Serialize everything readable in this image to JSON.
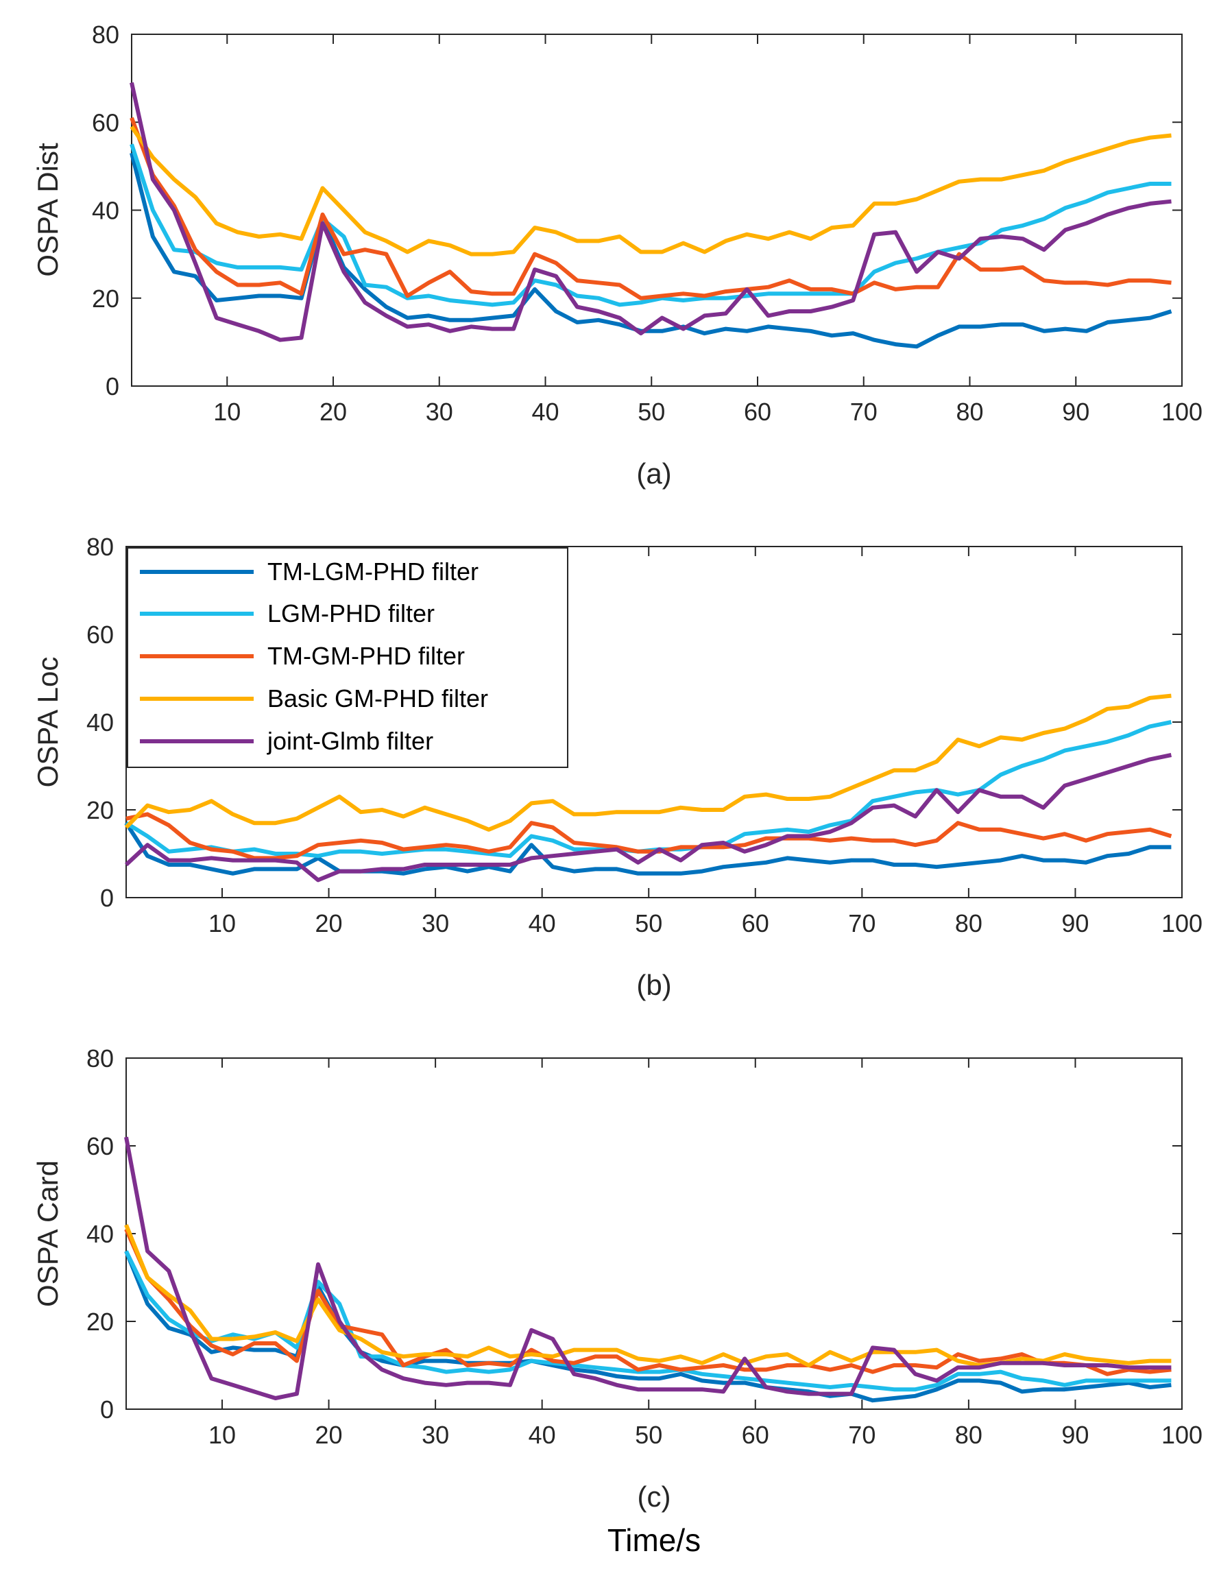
{
  "chart_data": [
    {
      "type": "line",
      "id": "a",
      "ylabel": "OSPA Dist",
      "subtitle": "(a)",
      "xlim": [
        1,
        100
      ],
      "ylim": [
        0,
        80
      ],
      "xticks": [
        10,
        20,
        30,
        40,
        50,
        60,
        70,
        80,
        90,
        100
      ],
      "yticks": [
        0,
        20,
        40,
        60,
        80
      ],
      "grid": false,
      "x": [
        1,
        3,
        5,
        7,
        9,
        11,
        13,
        15,
        17,
        19,
        21,
        23,
        25,
        27,
        29,
        31,
        33,
        35,
        37,
        39,
        41,
        43,
        45,
        47,
        49,
        51,
        53,
        55,
        57,
        59,
        61,
        63,
        65,
        67,
        69,
        71,
        73,
        75,
        77,
        79,
        81,
        83,
        85,
        87,
        89,
        91,
        93,
        95,
        97,
        99
      ],
      "series": [
        {
          "name": "TM-LGM-PHD filter",
          "color": "#0072BD",
          "values": [
            53,
            34,
            26,
            25,
            19.5,
            20,
            20.5,
            20.5,
            20,
            38,
            27,
            22,
            18,
            15.5,
            16,
            15,
            15,
            15.5,
            16,
            22,
            17,
            14.5,
            15,
            14,
            12.5,
            12.5,
            13.5,
            12,
            13,
            12.5,
            13.5,
            13,
            12.5,
            11.5,
            12,
            10.5,
            9.5,
            9,
            11.5,
            13.5,
            13.5,
            14,
            14,
            12.5,
            13,
            12.5,
            14.5,
            15,
            15.5,
            17
          ]
        },
        {
          "name": "LGM-PHD filter",
          "color": "#1EBDEB",
          "values": [
            55,
            40,
            31,
            30.5,
            28,
            27,
            27,
            27,
            26.5,
            38,
            34,
            23,
            22.5,
            20,
            20.5,
            19.5,
            19,
            18.5,
            19,
            24,
            23,
            20.5,
            20,
            18.5,
            19,
            20,
            19.5,
            20,
            20,
            20.5,
            21,
            21,
            21,
            21,
            21,
            26,
            28,
            29,
            30.5,
            31.5,
            32.5,
            35.5,
            36.5,
            38,
            40.5,
            42,
            44,
            45,
            46,
            46
          ]
        },
        {
          "name": "TM-GM-PHD filter",
          "color": "#F0561B",
          "values": [
            61,
            48,
            41,
            31,
            26,
            23,
            23,
            23.5,
            21,
            39,
            30,
            31,
            30,
            20.5,
            23.5,
            26,
            21.5,
            21,
            21,
            30,
            28,
            24,
            23.5,
            23,
            20,
            20.5,
            21,
            20.5,
            21.5,
            22,
            22.5,
            24,
            22,
            22,
            21,
            23.5,
            22,
            22.5,
            22.5,
            30,
            26.5,
            26.5,
            27,
            24,
            23.5,
            23.5,
            23,
            24,
            24,
            23.5
          ]
        },
        {
          "name": "Basic GM-PHD filter",
          "color": "#FFB000",
          "values": [
            59,
            52,
            47,
            43,
            37,
            35,
            34,
            34.5,
            33.5,
            45,
            40,
            35,
            33,
            30.5,
            33,
            32,
            30,
            30,
            30.5,
            36,
            35,
            33,
            33,
            34,
            30.5,
            30.5,
            32.5,
            30.5,
            33,
            34.5,
            33.5,
            35,
            33.5,
            36,
            36.5,
            41.5,
            41.5,
            42.5,
            44.5,
            46.5,
            47,
            47,
            48,
            49,
            51,
            52.5,
            54,
            55.5,
            56.5,
            57
          ]
        },
        {
          "name": "joint-Glmb filter",
          "color": "#7E2F8E",
          "values": [
            69,
            47,
            40,
            28,
            15.5,
            14,
            12.5,
            10.5,
            11,
            37,
            26,
            19,
            16,
            13.5,
            14,
            12.5,
            13.5,
            13,
            13,
            26.5,
            25,
            18,
            17,
            15.5,
            12,
            15.5,
            13,
            16,
            16.5,
            22,
            16,
            17,
            17,
            18,
            19.5,
            34.5,
            35,
            26,
            30.5,
            29,
            33.5,
            34,
            33.5,
            31,
            35.5,
            37,
            39,
            40.5,
            41.5,
            42
          ]
        }
      ]
    },
    {
      "type": "line",
      "id": "b",
      "ylabel": "OSPA Loc",
      "subtitle": "(b)",
      "xlim": [
        1,
        100
      ],
      "ylim": [
        0,
        80
      ],
      "xticks": [
        10,
        20,
        30,
        40,
        50,
        60,
        70,
        80,
        90,
        100
      ],
      "yticks": [
        0,
        20,
        40,
        60,
        80
      ],
      "grid": false,
      "legend": {
        "position": "top-left",
        "entries": [
          "TM-LGM-PHD filter",
          "LGM-PHD filter",
          "TM-GM-PHD filter",
          "Basic GM-PHD filter",
          "joint-Glmb filter"
        ]
      },
      "x": [
        1,
        3,
        5,
        7,
        9,
        11,
        13,
        15,
        17,
        19,
        21,
        23,
        25,
        27,
        29,
        31,
        33,
        35,
        37,
        39,
        41,
        43,
        45,
        47,
        49,
        51,
        53,
        55,
        57,
        59,
        61,
        63,
        65,
        67,
        69,
        71,
        73,
        75,
        77,
        79,
        81,
        83,
        85,
        87,
        89,
        91,
        93,
        95,
        97,
        99
      ],
      "series": [
        {
          "name": "TM-LGM-PHD filter",
          "color": "#0072BD",
          "values": [
            17,
            9.5,
            7.5,
            7.5,
            6.5,
            5.5,
            6.5,
            6.5,
            6.5,
            9,
            6,
            6,
            6,
            5.5,
            6.5,
            7,
            6,
            7,
            6,
            12,
            7,
            6,
            6.5,
            6.5,
            5.5,
            5.5,
            5.5,
            6,
            7,
            7.5,
            8,
            9,
            8.5,
            8,
            8.5,
            8.5,
            7.5,
            7.5,
            7,
            7.5,
            8,
            8.5,
            9.5,
            8.5,
            8.5,
            8,
            9.5,
            10,
            11.5,
            11.5
          ]
        },
        {
          "name": "LGM-PHD filter",
          "color": "#1EBDEB",
          "values": [
            17,
            14,
            10.5,
            11,
            11.5,
            10.5,
            11,
            10,
            10,
            9.5,
            10.5,
            10.5,
            10,
            10.5,
            11,
            11,
            10.5,
            10,
            9.5,
            14,
            13,
            11,
            11,
            11,
            10.5,
            11,
            11,
            11.5,
            12,
            14.5,
            15,
            15.5,
            15,
            16.5,
            17.5,
            22,
            23,
            24,
            24.5,
            23.5,
            24.5,
            28,
            30,
            31.5,
            33.5,
            34.5,
            35.5,
            37,
            39,
            40
          ]
        },
        {
          "name": "TM-GM-PHD filter",
          "color": "#F0561B",
          "values": [
            18,
            19,
            16.5,
            12.5,
            11,
            10.5,
            9,
            9,
            9.5,
            12,
            12.5,
            13,
            12.5,
            11,
            11.5,
            12,
            11.5,
            10.5,
            11.5,
            17,
            16,
            12.5,
            12,
            11.5,
            10.5,
            10.5,
            11.5,
            11.5,
            11.5,
            12,
            13.5,
            13.5,
            13.5,
            13,
            13.5,
            13,
            13,
            12,
            13,
            17,
            15.5,
            15.5,
            14.5,
            13.5,
            14.5,
            13,
            14.5,
            15,
            15.5,
            14
          ]
        },
        {
          "name": "Basic GM-PHD filter",
          "color": "#FFB000",
          "values": [
            16,
            21,
            19.5,
            20,
            22,
            19,
            17,
            17,
            18,
            20.5,
            23,
            19.5,
            20,
            18.5,
            20.5,
            19,
            17.5,
            15.5,
            17.5,
            21.5,
            22,
            19,
            19,
            19.5,
            19.5,
            19.5,
            20.5,
            20,
            20,
            23,
            23.5,
            22.5,
            22.5,
            23,
            25,
            27,
            29,
            29,
            31,
            36,
            34.5,
            36.5,
            36,
            37.5,
            38.5,
            40.5,
            43,
            43.5,
            45.5,
            46
          ]
        },
        {
          "name": "joint-Glmb filter",
          "color": "#7E2F8E",
          "values": [
            7.5,
            12,
            8.5,
            8.5,
            9,
            8.5,
            8.5,
            8.5,
            8,
            4,
            6,
            6,
            6.5,
            6.5,
            7.5,
            7.5,
            7.5,
            7.5,
            7.5,
            9,
            9.5,
            10,
            10.5,
            11,
            8,
            11,
            8.5,
            12,
            12.5,
            10.5,
            12,
            14,
            14,
            15,
            17,
            20.5,
            21,
            18.5,
            24.5,
            19.5,
            24.5,
            23,
            23,
            20.5,
            25.5,
            27,
            28.5,
            30,
            31.5,
            32.5
          ]
        }
      ]
    },
    {
      "type": "line",
      "id": "c",
      "ylabel": "OSPA Card",
      "subtitle": "(c)",
      "xlabel": "Time/s",
      "xlim": [
        1,
        100
      ],
      "ylim": [
        0,
        80
      ],
      "xticks": [
        10,
        20,
        30,
        40,
        50,
        60,
        70,
        80,
        90,
        100
      ],
      "yticks": [
        0,
        20,
        40,
        60,
        80
      ],
      "grid": false,
      "x": [
        1,
        3,
        5,
        7,
        9,
        11,
        13,
        15,
        17,
        19,
        21,
        23,
        25,
        27,
        29,
        31,
        33,
        35,
        37,
        39,
        41,
        43,
        45,
        47,
        49,
        51,
        53,
        55,
        57,
        59,
        61,
        63,
        65,
        67,
        69,
        71,
        73,
        75,
        77,
        79,
        81,
        83,
        85,
        87,
        89,
        91,
        93,
        95,
        97,
        99
      ],
      "series": [
        {
          "name": "TM-LGM-PHD filter",
          "color": "#0072BD",
          "values": [
            36,
            24,
            18.5,
            17,
            13,
            14,
            13.5,
            13.5,
            12,
            28,
            19,
            13,
            11,
            10,
            11,
            11,
            10.5,
            10.5,
            10.5,
            11,
            10,
            9,
            8.5,
            7.5,
            7,
            7,
            8,
            6.5,
            6,
            6,
            5,
            4.5,
            4,
            3,
            3.5,
            2,
            2.5,
            3,
            4.5,
            6.5,
            6.5,
            6,
            4,
            4.5,
            4.5,
            5,
            5.5,
            6,
            5,
            5.5
          ]
        },
        {
          "name": "LGM-PHD filter",
          "color": "#1EBDEB",
          "values": [
            36,
            26,
            20.5,
            17.5,
            15.5,
            17,
            16,
            17.5,
            14,
            29,
            24,
            12,
            12,
            10,
            9.5,
            8.5,
            9,
            8.5,
            9,
            11,
            10.5,
            10,
            9.5,
            9,
            8.5,
            8.5,
            9,
            8,
            7.5,
            7,
            6.5,
            6,
            5.5,
            5,
            5.5,
            5,
            4.5,
            4.5,
            5.5,
            8,
            8,
            8.5,
            7,
            6.5,
            5.5,
            6.5,
            6.5,
            6.5,
            6.5,
            6.5
          ]
        },
        {
          "name": "TM-GM-PHD filter",
          "color": "#F0561B",
          "values": [
            41,
            30,
            25,
            19,
            14.5,
            12.5,
            15,
            15,
            11,
            27,
            19,
            18,
            17,
            10,
            12,
            13.5,
            10,
            10.5,
            10,
            13.5,
            11,
            10.5,
            12,
            12,
            9,
            10,
            9,
            9.5,
            10,
            9,
            9,
            10,
            10,
            9,
            10,
            8.5,
            10,
            10,
            9.5,
            12.5,
            11,
            11.5,
            12.5,
            10.5,
            10.5,
            10,
            8,
            9,
            8.5,
            9
          ]
        },
        {
          "name": "Basic GM-PHD filter",
          "color": "#FFB000",
          "values": [
            42,
            30,
            26,
            22.5,
            16,
            16,
            16.5,
            17.5,
            15.5,
            25,
            18,
            16,
            13,
            12,
            12.5,
            12.5,
            12,
            14,
            12,
            12.5,
            12,
            13.5,
            13.5,
            13.5,
            11.5,
            11,
            12,
            10.5,
            12.5,
            10.5,
            12,
            12.5,
            10,
            13,
            11,
            13,
            13,
            13,
            13.5,
            11,
            10,
            10.5,
            11.5,
            11,
            12.5,
            11.5,
            11,
            10.5,
            11,
            11
          ]
        },
        {
          "name": "joint-Glmb filter",
          "color": "#7E2F8E",
          "values": [
            62,
            36,
            31.5,
            18,
            7,
            5.5,
            4,
            2.5,
            3.5,
            33,
            20,
            13,
            9,
            7,
            6,
            5.5,
            6,
            6,
            5.5,
            18,
            16,
            8,
            7,
            5.5,
            4.5,
            4.5,
            4.5,
            4.5,
            4,
            11.5,
            5,
            4,
            3.5,
            3.5,
            3.5,
            14,
            13.5,
            8,
            6.5,
            9.5,
            9.5,
            10.5,
            10.5,
            10.5,
            10,
            10,
            10,
            9.5,
            9.5,
            9.5
          ]
        }
      ]
    }
  ]
}
